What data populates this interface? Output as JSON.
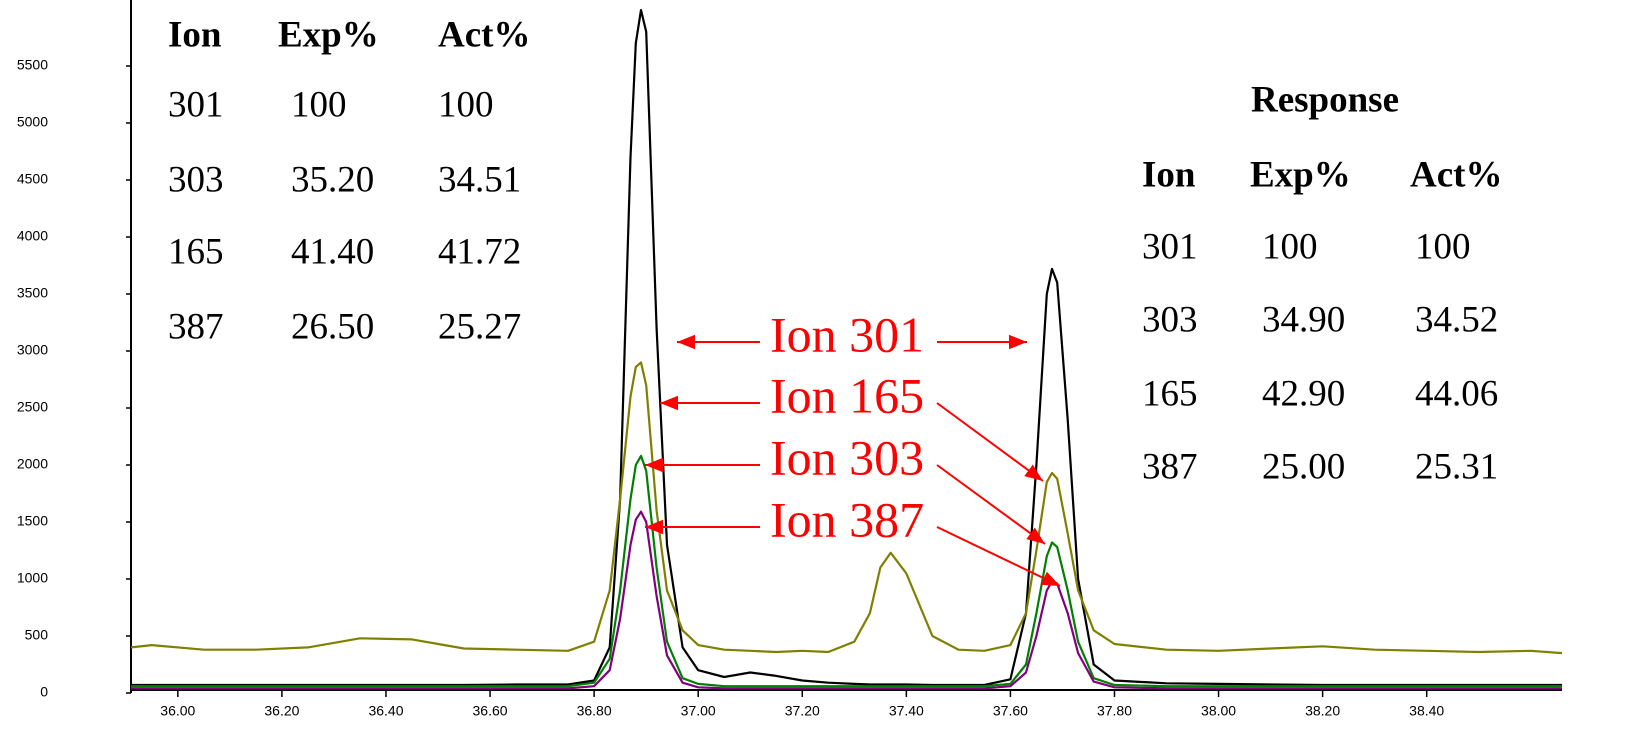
{
  "chart_data": {
    "type": "line",
    "x": [
      35.91,
      35.95,
      36.05,
      36.15,
      36.25,
      36.35,
      36.45,
      36.55,
      36.65,
      36.75,
      36.8,
      36.83,
      36.85,
      36.87,
      36.88,
      36.89,
      36.9,
      36.92,
      36.94,
      36.97,
      37.0,
      37.05,
      37.1,
      37.15,
      37.2,
      37.25,
      37.3,
      37.33,
      37.35,
      37.37,
      37.4,
      37.45,
      37.5,
      37.55,
      37.6,
      37.63,
      37.65,
      37.67,
      37.68,
      37.69,
      37.71,
      37.73,
      37.76,
      37.8,
      37.9,
      38.0,
      38.1,
      38.2,
      38.3,
      38.4,
      38.5,
      38.6,
      38.66
    ],
    "series": [
      {
        "name": "Ion 301",
        "color": "#000000",
        "values": [
          70,
          70,
          70,
          70,
          70,
          70,
          70,
          70,
          75,
          75,
          110,
          400,
          1700,
          4700,
          5700,
          5990,
          5800,
          3200,
          1300,
          400,
          200,
          140,
          180,
          150,
          110,
          90,
          80,
          75,
          75,
          75,
          75,
          70,
          70,
          70,
          120,
          700,
          2000,
          3500,
          3720,
          3600,
          2400,
          1000,
          250,
          110,
          85,
          80,
          75,
          70,
          70,
          70,
          70,
          70,
          70
        ]
      },
      {
        "name": "Ion 165",
        "color": "#808000",
        "values": [
          400,
          420,
          380,
          380,
          400,
          480,
          470,
          390,
          380,
          370,
          450,
          900,
          1700,
          2600,
          2860,
          2900,
          2700,
          1600,
          900,
          550,
          420,
          380,
          370,
          360,
          370,
          360,
          450,
          700,
          1100,
          1230,
          1050,
          500,
          380,
          370,
          420,
          700,
          1250,
          1850,
          1930,
          1880,
          1400,
          900,
          550,
          430,
          380,
          370,
          390,
          410,
          380,
          370,
          360,
          370,
          350
        ]
      },
      {
        "name": "Ion 303",
        "color": "#008000",
        "values": [
          60,
          60,
          60,
          60,
          60,
          60,
          60,
          60,
          60,
          60,
          90,
          300,
          900,
          1700,
          2000,
          2080,
          1950,
          1100,
          450,
          130,
          80,
          60,
          60,
          60,
          60,
          60,
          60,
          60,
          60,
          60,
          60,
          60,
          60,
          60,
          80,
          250,
          700,
          1200,
          1320,
          1280,
          900,
          450,
          130,
          70,
          60,
          60,
          60,
          60,
          60,
          60,
          60,
          60,
          60
        ]
      },
      {
        "name": "Ion 387",
        "color": "#800080",
        "values": [
          40,
          40,
          40,
          40,
          40,
          40,
          40,
          40,
          40,
          40,
          60,
          200,
          650,
          1300,
          1520,
          1590,
          1500,
          850,
          330,
          90,
          50,
          40,
          40,
          40,
          40,
          40,
          40,
          40,
          40,
          40,
          40,
          40,
          40,
          40,
          60,
          180,
          500,
          900,
          980,
          960,
          700,
          350,
          100,
          50,
          40,
          40,
          40,
          40,
          40,
          40,
          40,
          40,
          40
        ]
      }
    ],
    "xlim": [
      35.91,
      38.66
    ],
    "ylim": [
      0,
      6000
    ],
    "xticks": [
      {
        "value": 36.0,
        "label": "36.00"
      },
      {
        "value": 36.2,
        "label": "36.20"
      },
      {
        "value": 36.4,
        "label": "36.40"
      },
      {
        "value": 36.6,
        "label": "36.60"
      },
      {
        "value": 36.8,
        "label": "36.80"
      },
      {
        "value": 37.0,
        "label": "37.00"
      },
      {
        "value": 37.2,
        "label": "37.20"
      },
      {
        "value": 37.4,
        "label": "37.40"
      },
      {
        "value": 37.6,
        "label": "37.60"
      },
      {
        "value": 37.8,
        "label": "37.80"
      },
      {
        "value": 38.0,
        "label": "38.00"
      },
      {
        "value": 38.2,
        "label": "38.20"
      },
      {
        "value": 38.4,
        "label": "38.40"
      }
    ],
    "yticks": [
      0,
      500,
      1000,
      1500,
      2000,
      2500,
      3000,
      3500,
      4000,
      4500,
      5000,
      5500
    ],
    "grid": false,
    "annotation_color": "#ff0000",
    "tables": [
      {
        "header": [
          "Ion",
          "Exp%",
          "Act%"
        ],
        "rows": [
          [
            "301",
            "100",
            "100"
          ],
          [
            "303",
            "35.20",
            "34.51"
          ],
          [
            "165",
            "41.40",
            "41.72"
          ],
          [
            "387",
            "26.50",
            "25.27"
          ]
        ]
      },
      {
        "title": "Response",
        "header": [
          "Ion",
          "Exp%",
          "Act%"
        ],
        "rows": [
          [
            "301",
            "100",
            "100"
          ],
          [
            "303",
            "34.90",
            "34.52"
          ],
          [
            "165",
            "42.90",
            "44.06"
          ],
          [
            "387",
            "25.00",
            "25.31"
          ]
        ]
      }
    ]
  }
}
